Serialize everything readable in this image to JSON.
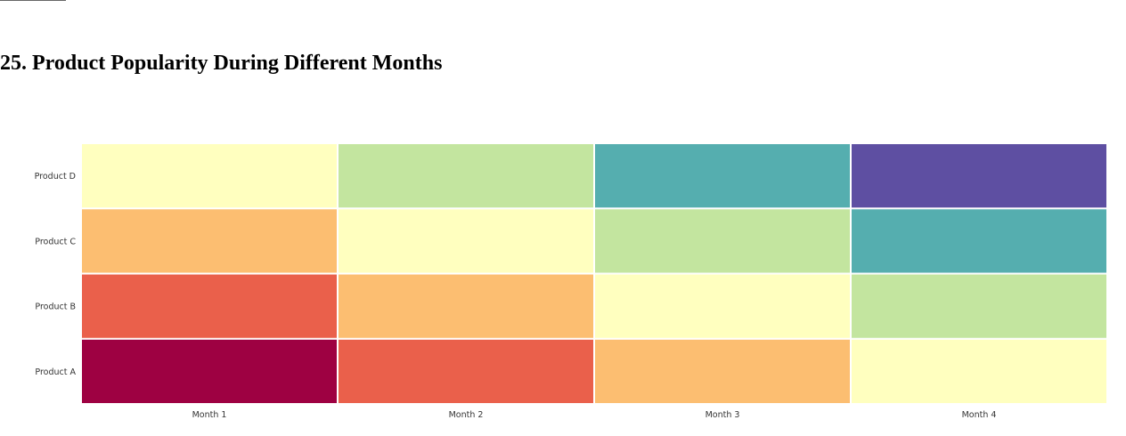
{
  "page": {
    "title": "25. Product Popularity During Different Months"
  },
  "chart_data": {
    "type": "heatmap",
    "title": "",
    "xlabel": "",
    "ylabel": "",
    "x": [
      "Month 1",
      "Month 2",
      "Month 3",
      "Month 4"
    ],
    "y": [
      "Product A",
      "Product B",
      "Product C",
      "Product D"
    ],
    "z": [
      [
        1,
        2,
        3,
        4
      ],
      [
        2,
        3,
        4,
        5
      ],
      [
        3,
        4,
        5,
        6
      ],
      [
        4,
        5,
        6,
        7
      ]
    ],
    "zlim": [
      1,
      7
    ],
    "colorscale": "Spectral",
    "colors": {
      "1": "#9e0142",
      "2": "#ea604b",
      "3": "#fcbe71",
      "4": "#ffffbf",
      "5": "#c3e59f",
      "6": "#55aeaf",
      "7": "#5e4fa2"
    },
    "showscale": false,
    "grid": false
  }
}
